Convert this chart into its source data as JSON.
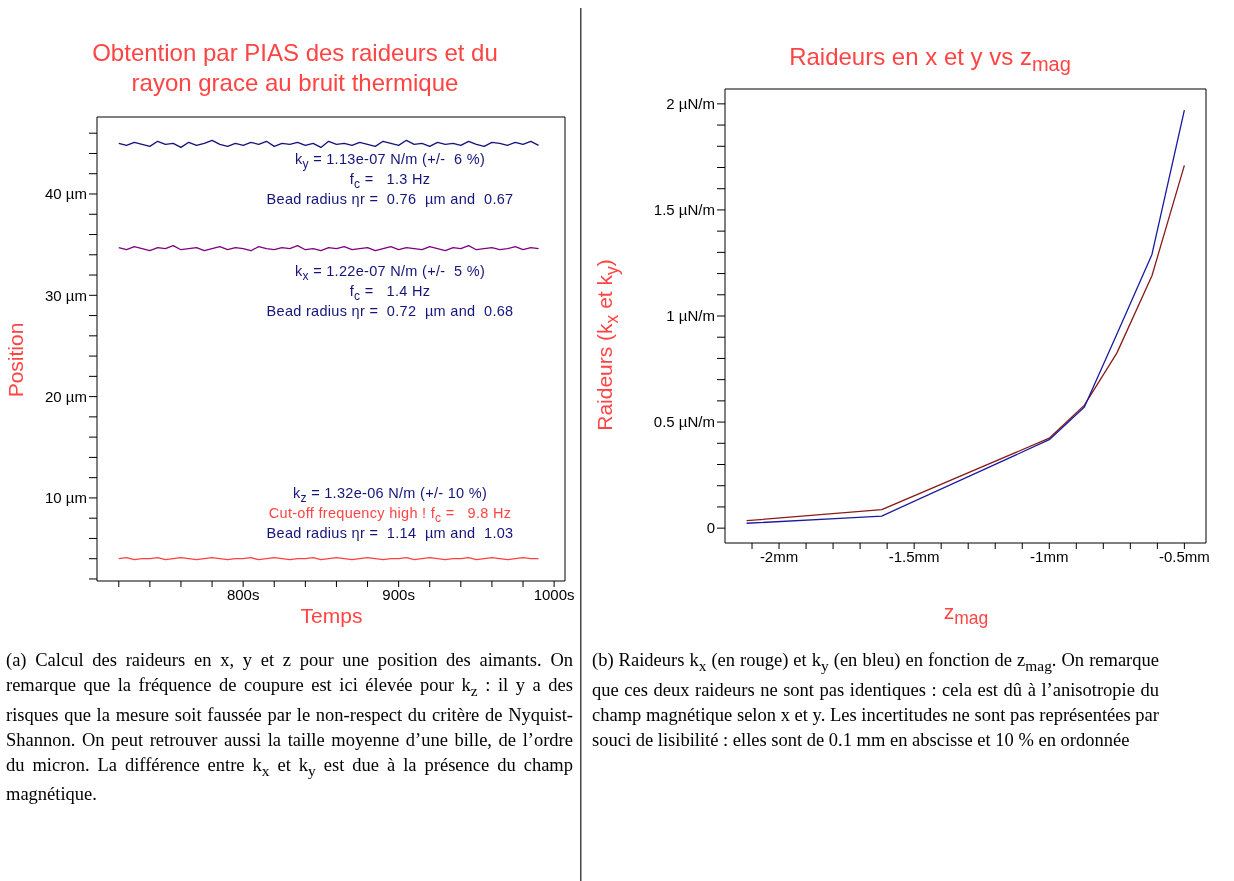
{
  "chart_data": [
    {
      "type": "line",
      "title": "Obtention par PIAS des raideurs et du rayon grace au bruit thermique",
      "xlabel": "Temps",
      "ylabel": "Position",
      "x": [
        720,
        725,
        730,
        735,
        740,
        745,
        750,
        755,
        760,
        765,
        770,
        775,
        780,
        785,
        790,
        795,
        800,
        805,
        810,
        815,
        820,
        825,
        830,
        835,
        840,
        845,
        850,
        855,
        860,
        865,
        870,
        875,
        880,
        885,
        890,
        895,
        900,
        905,
        910,
        915,
        920,
        925,
        930,
        935,
        940,
        945,
        950,
        955,
        960,
        965,
        970,
        975,
        980,
        985,
        990
      ],
      "series": [
        {
          "color": "#14147a",
          "values": [
            45.0,
            44.8,
            45.1,
            44.9,
            44.7,
            45.2,
            44.9,
            45.0,
            44.6,
            45.1,
            44.8,
            45.0,
            45.3,
            44.9,
            44.7,
            45.0,
            44.8,
            45.1,
            44.9,
            45.2,
            44.7,
            45.0,
            44.9,
            45.1,
            44.8,
            45.0,
            44.6,
            45.2,
            44.9,
            45.0,
            44.8,
            45.1,
            44.9,
            44.7,
            45.2,
            45.0,
            44.8,
            45.3,
            44.9,
            45.0,
            44.7,
            45.1,
            44.9,
            45.0,
            44.8,
            45.2,
            44.9,
            44.7,
            45.1,
            45.0,
            44.8,
            45.1,
            44.9,
            45.2,
            44.8
          ]
        },
        {
          "color": "#800080",
          "values": [
            34.7,
            34.5,
            34.8,
            34.6,
            34.4,
            34.7,
            34.6,
            34.9,
            34.5,
            34.6,
            34.7,
            34.4,
            34.6,
            34.8,
            34.5,
            34.7,
            34.6,
            34.4,
            34.8,
            34.6,
            34.5,
            34.7,
            34.6,
            34.9,
            34.5,
            34.6,
            34.4,
            34.7,
            34.6,
            34.8,
            34.5,
            34.6,
            34.7,
            34.4,
            34.6,
            34.8,
            34.5,
            34.7,
            34.6,
            34.5,
            34.8,
            34.6,
            34.4,
            34.7,
            34.6,
            34.9,
            34.5,
            34.6,
            34.7,
            34.5,
            34.6,
            34.8,
            34.5,
            34.7,
            34.6
          ]
        },
        {
          "color": "#ff4040",
          "values": [
            4.0,
            4.1,
            3.9,
            4.0,
            4.0,
            4.1,
            3.9,
            4.0,
            4.1,
            4.0,
            3.9,
            4.0,
            4.1,
            4.0,
            3.9,
            4.0,
            4.0,
            4.1,
            3.9,
            4.0,
            4.1,
            4.0,
            3.9,
            4.0,
            4.0,
            4.1,
            3.9,
            4.0,
            4.1,
            4.0,
            3.9,
            4.0,
            4.1,
            4.0,
            3.9,
            4.0,
            4.0,
            4.1,
            3.9,
            4.0,
            4.1,
            4.0,
            3.9,
            4.0,
            4.0,
            4.1,
            3.9,
            4.0,
            4.1,
            4.0,
            3.9,
            4.0,
            4.1,
            4.0,
            4.0
          ]
        }
      ],
      "xlim": [
        706,
        1007
      ],
      "xticks": [
        {
          "value": 720,
          "label": null
        },
        {
          "value": 740,
          "label": null
        },
        {
          "value": 760,
          "label": null
        },
        {
          "value": 780,
          "label": null
        },
        {
          "value": 800,
          "label": "800s"
        },
        {
          "value": 820,
          "label": null
        },
        {
          "value": 840,
          "label": null
        },
        {
          "value": 860,
          "label": null
        },
        {
          "value": 880,
          "label": null
        },
        {
          "value": 900,
          "label": "900s"
        },
        {
          "value": 920,
          "label": null
        },
        {
          "value": 940,
          "label": null
        },
        {
          "value": 960,
          "label": null
        },
        {
          "value": 980,
          "label": null
        },
        {
          "value": 1000,
          "label": "1000s"
        }
      ],
      "ylim": [
        1.8,
        47.6
      ],
      "yticks": [
        {
          "value": 2,
          "label": null
        },
        {
          "value": 4,
          "label": null
        },
        {
          "value": 6,
          "label": null
        },
        {
          "value": 8,
          "label": null
        },
        {
          "value": 10,
          "label": "10 µm"
        },
        {
          "value": 12,
          "label": null
        },
        {
          "value": 14,
          "label": null
        },
        {
          "value": 16,
          "label": null
        },
        {
          "value": 18,
          "label": null
        },
        {
          "value": 20,
          "label": "20 µm"
        },
        {
          "value": 22,
          "label": null
        },
        {
          "value": 24,
          "label": null
        },
        {
          "value": 26,
          "label": null
        },
        {
          "value": 28,
          "label": null
        },
        {
          "value": 30,
          "label": "30 µm"
        },
        {
          "value": 32,
          "label": null
        },
        {
          "value": 34,
          "label": null
        },
        {
          "value": 36,
          "label": null
        },
        {
          "value": 38,
          "label": null
        },
        {
          "value": 40,
          "label": "40 µm"
        },
        {
          "value": 42,
          "label": null
        },
        {
          "value": 44,
          "label": null
        },
        {
          "value": 46,
          "label": null
        }
      ],
      "grid": false,
      "legend": false,
      "marker": "none",
      "line_style": "solid",
      "annotations": [
        "k$_{y}$ = 1.13e-07 N/m (+/-  6 %)",
        "f$_{c}$ =   1.3 Hz",
        "Bead radius ηr =  0.76  µm and  0.67",
        "k$_{x}$ = 1.22e-07 N/m (+/-  5 %)",
        "f$_{c}$ =   1.4 Hz",
        "Bead radius ηr =  0.72  µm and  0.68",
        "k$_{z}$ = 1.32e-06 N/m (+/- 10 %)",
        "Cut-off frequency high ! f$_{c}$ =   9.8 Hz",
        "Bead radius ηr =  1.14  µm and  1.03",
        "(a) Calcul des raideurs en x, y et z pour une position des aimants. On remarque que la fréquence de coupure est ici élevée pour k$_{z}$ : il y a des risques que la mesure soit faussée par le non-respect du critère de Nyquist-Shannon. On peut retrouver aussi la taille moyenne d’une bille, de l’ordre du micron. La différence entre k$_{x}$ et k$_{y}$ est due à la présence du champ magnétique."
      ]
    },
    {
      "type": "line",
      "title": "Raideurs en x et y vs z$_{mag}$",
      "xlabel": "z$_{mag}$",
      "ylabel": "Raideurs (k$_{x}$ et k$_{y}$)",
      "series": [
        {
          "color": "#8b1a1a",
          "x": [
            -2.12,
            -1.62,
            -1.0,
            -0.87,
            -0.75,
            -0.62,
            -0.5
          ],
          "values": [
            0.035,
            0.087,
            0.424,
            0.58,
            0.825,
            1.19,
            1.71
          ]
        },
        {
          "color": "#1a1aa0",
          "x": [
            -2.12,
            -1.74,
            -1.62,
            -1.0,
            -0.87,
            -0.75,
            -0.62,
            -0.5
          ],
          "values": [
            0.023,
            0.048,
            0.057,
            0.417,
            0.571,
            0.914,
            1.29,
            1.97
          ]
        }
      ],
      "xlim": [
        -2.2,
        -0.42
      ],
      "xticks": [
        {
          "value": -2.1,
          "label": null
        },
        {
          "value": -2,
          "label": "-2mm"
        },
        {
          "value": -1.9,
          "label": null
        },
        {
          "value": -1.8,
          "label": null
        },
        {
          "value": -1.7,
          "label": null
        },
        {
          "value": -1.6,
          "label": null
        },
        {
          "value": -1.5,
          "label": "-1.5mm"
        },
        {
          "value": -1.4,
          "label": null
        },
        {
          "value": -1.3,
          "label": null
        },
        {
          "value": -1.2,
          "label": null
        },
        {
          "value": -1.1,
          "label": null
        },
        {
          "value": -1,
          "label": "-1mm"
        },
        {
          "value": -0.9,
          "label": null
        },
        {
          "value": -0.8,
          "label": null
        },
        {
          "value": -0.7,
          "label": null
        },
        {
          "value": -0.6,
          "label": null
        },
        {
          "value": -0.5,
          "label": "-0.5mm"
        }
      ],
      "ylim": [
        -0.07,
        2.07
      ],
      "yticks": [
        0,
        {
          "value": 0.1,
          "label": null
        },
        {
          "value": 0.2,
          "label": null
        },
        {
          "value": 0.3,
          "label": null
        },
        {
          "value": 0.4,
          "label": null
        },
        {
          "value": 0.5,
          "label": "0.5 µN/m"
        },
        {
          "value": 0.6,
          "label": null
        },
        {
          "value": 0.7,
          "label": null
        },
        {
          "value": 0.8,
          "label": null
        },
        {
          "value": 0.9,
          "label": null
        },
        {
          "value": 1,
          "label": "1 µN/m"
        },
        {
          "value": 1.1,
          "label": null
        },
        {
          "value": 1.2,
          "label": null
        },
        {
          "value": 1.3,
          "label": null
        },
        {
          "value": 1.4,
          "label": null
        },
        {
          "value": 1.5,
          "label": "1.5 µN/m"
        },
        {
          "value": 1.6,
          "label": null
        },
        {
          "value": 1.7,
          "label": null
        },
        {
          "value": 1.8,
          "label": null
        },
        {
          "value": 1.9,
          "label": null
        },
        {
          "value": 2,
          "label": "2 µN/m"
        }
      ],
      "grid": false,
      "legend": false,
      "marker": "none",
      "line_style": "solid",
      "annotations": [
        "(b) Raideurs k$_{x}$ (en rouge) et k$_{y}$ (en bleu) en fonction de z$_{mag}$. On remarque que ces deux raideurs ne sont pas identiques : cela est dû à l’anisotropie du champ magnétique selon x et y. Les incertitudes ne sont pas représentées par souci de lisibilité : elles sont de 0.1 mm en abscisse et 10 % en ordonnée"
      ]
    }
  ]
}
